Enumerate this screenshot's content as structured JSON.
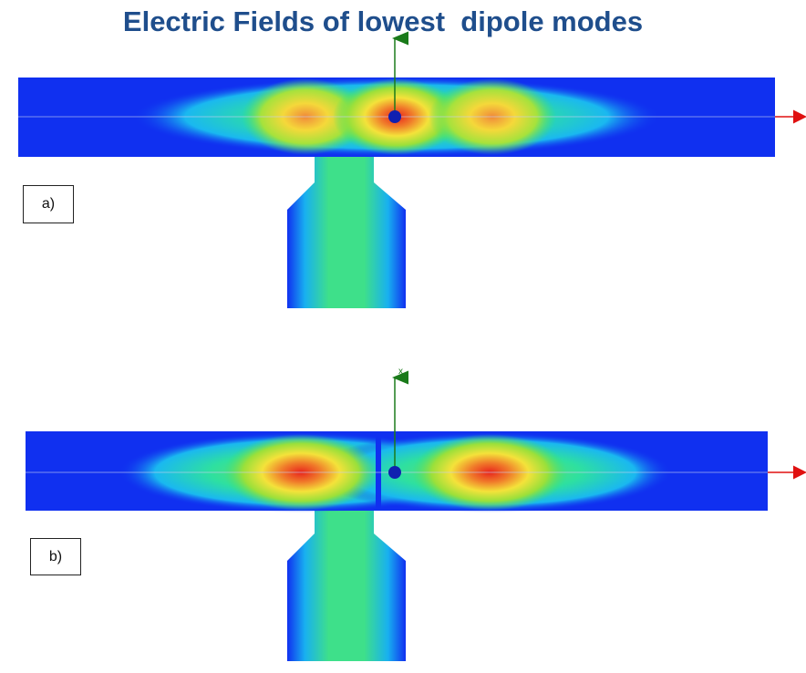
{
  "title": "Electric Fields of lowest  dipole modes",
  "panels": [
    {
      "label": "a)"
    },
    {
      "label": "b)",
      "axis_label": "x"
    }
  ]
}
